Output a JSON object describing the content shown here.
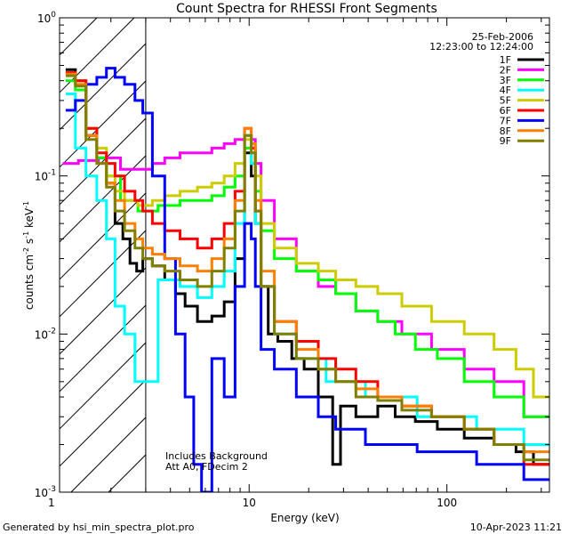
{
  "chart_data": {
    "type": "line",
    "title": "Count Spectra for RHESSI Front Segments",
    "xlabel": "Energy (keV)",
    "ylabel_parts": [
      "counts cm",
      "-2",
      " s",
      "-1",
      " keV",
      "-1"
    ],
    "x_scale": "log",
    "y_scale": "log",
    "xlim": [
      1.1,
      330
    ],
    "ylim": [
      0.001,
      1
    ],
    "x_ticks": [
      {
        "value": 1,
        "label": "1"
      },
      {
        "value": 10,
        "label": "10"
      },
      {
        "value": 100,
        "label": "100"
      }
    ],
    "y_ticks": [
      {
        "value": 0.001,
        "mantissa": "10",
        "exponent": "-3"
      },
      {
        "value": 0.01,
        "mantissa": "10",
        "exponent": "-2"
      },
      {
        "value": 0.1,
        "mantissa": "10",
        "exponent": "-1"
      },
      {
        "value": 1,
        "mantissa": "10",
        "exponent": "0"
      }
    ],
    "annotations": {
      "date": "25-Feb-2006",
      "time_range": "12:23:00 to 12:24:00",
      "notes": [
        "Includes Background",
        "Att A0, FDecim 2"
      ]
    },
    "shaded_region": {
      "x_end": 3,
      "style": "diagonal-hatch"
    },
    "legend_position": "top-right",
    "series": [
      {
        "name": "1F",
        "color": "#000000",
        "points": [
          [
            1.25,
            0.47
          ],
          [
            1.4,
            0.4
          ],
          [
            1.6,
            0.18
          ],
          [
            1.8,
            0.13
          ],
          [
            2.0,
            0.09
          ],
          [
            2.2,
            0.05
          ],
          [
            2.4,
            0.04
          ],
          [
            2.6,
            0.028
          ],
          [
            2.8,
            0.025
          ],
          [
            3.0,
            0.03
          ],
          [
            3.5,
            0.027
          ],
          [
            4.0,
            0.022
          ],
          [
            4.5,
            0.018
          ],
          [
            5.0,
            0.015
          ],
          [
            6.0,
            0.012
          ],
          [
            7.0,
            0.013
          ],
          [
            8.0,
            0.016
          ],
          [
            9.0,
            0.03
          ],
          [
            10.0,
            0.14
          ],
          [
            10.5,
            0.1
          ],
          [
            11.0,
            0.05
          ],
          [
            12.0,
            0.02
          ],
          [
            13.0,
            0.01
          ],
          [
            15.0,
            0.009
          ],
          [
            18.0,
            0.007
          ],
          [
            20.0,
            0.006
          ],
          [
            25.0,
            0.004
          ],
          [
            28.0,
            0.0015
          ],
          [
            30.0,
            0.0035
          ],
          [
            40.0,
            0.003
          ],
          [
            50.0,
            0.0035
          ],
          [
            60.0,
            0.003
          ],
          [
            80.0,
            0.0028
          ],
          [
            100.0,
            0.0025
          ],
          [
            150.0,
            0.0022
          ],
          [
            200.0,
            0.002
          ],
          [
            250.0,
            0.0018
          ],
          [
            300.0,
            0.0015
          ]
        ]
      },
      {
        "name": "2F",
        "color": "#ff00ff",
        "points": [
          [
            1.25,
            0.12
          ],
          [
            1.5,
            0.125
          ],
          [
            2.0,
            0.13
          ],
          [
            2.5,
            0.11
          ],
          [
            3.0,
            0.11
          ],
          [
            3.5,
            0.12
          ],
          [
            4.0,
            0.13
          ],
          [
            5.0,
            0.14
          ],
          [
            6.0,
            0.14
          ],
          [
            7.0,
            0.15
          ],
          [
            8.0,
            0.16
          ],
          [
            9.0,
            0.17
          ],
          [
            10.0,
            0.18
          ],
          [
            10.5,
            0.17
          ],
          [
            11.0,
            0.12
          ],
          [
            12.0,
            0.07
          ],
          [
            15.0,
            0.04
          ],
          [
            20.0,
            0.025
          ],
          [
            25.0,
            0.02
          ],
          [
            30.0,
            0.018
          ],
          [
            40.0,
            0.014
          ],
          [
            50.0,
            0.012
          ],
          [
            70.0,
            0.01
          ],
          [
            100.0,
            0.008
          ],
          [
            150.0,
            0.006
          ],
          [
            200.0,
            0.005
          ],
          [
            300.0,
            0.003
          ]
        ]
      },
      {
        "name": "3F",
        "color": "#00ff00",
        "points": [
          [
            1.25,
            0.4
          ],
          [
            1.4,
            0.35
          ],
          [
            1.6,
            0.2
          ],
          [
            1.8,
            0.13
          ],
          [
            2.0,
            0.1
          ],
          [
            2.5,
            0.07
          ],
          [
            3.0,
            0.06
          ],
          [
            4.0,
            0.065
          ],
          [
            5.0,
            0.07
          ],
          [
            6.0,
            0.07
          ],
          [
            7.0,
            0.075
          ],
          [
            8.0,
            0.085
          ],
          [
            9.0,
            0.1
          ],
          [
            10.0,
            0.15
          ],
          [
            10.5,
            0.12
          ],
          [
            11.0,
            0.08
          ],
          [
            12.0,
            0.045
          ],
          [
            15.0,
            0.03
          ],
          [
            20.0,
            0.025
          ],
          [
            25.0,
            0.022
          ],
          [
            30.0,
            0.018
          ],
          [
            40.0,
            0.014
          ],
          [
            50.0,
            0.012
          ],
          [
            60.0,
            0.01
          ],
          [
            80.0,
            0.008
          ],
          [
            100.0,
            0.007
          ],
          [
            150.0,
            0.005
          ],
          [
            200.0,
            0.004
          ],
          [
            300.0,
            0.003
          ]
        ]
      },
      {
        "name": "4F",
        "color": "#00ffff",
        "points": [
          [
            1.25,
            0.33
          ],
          [
            1.4,
            0.15
          ],
          [
            1.6,
            0.1
          ],
          [
            1.8,
            0.07
          ],
          [
            2.0,
            0.04
          ],
          [
            2.2,
            0.015
          ],
          [
            2.5,
            0.01
          ],
          [
            2.8,
            0.005
          ],
          [
            3.0,
            0.005
          ],
          [
            4.0,
            0.022
          ],
          [
            5.0,
            0.02
          ],
          [
            6.0,
            0.017
          ],
          [
            7.0,
            0.02
          ],
          [
            8.0,
            0.025
          ],
          [
            9.0,
            0.05
          ],
          [
            10.0,
            0.18
          ],
          [
            10.5,
            0.12
          ],
          [
            11.0,
            0.05
          ],
          [
            12.0,
            0.02
          ],
          [
            15.0,
            0.01
          ],
          [
            20.0,
            0.007
          ],
          [
            30.0,
            0.005
          ],
          [
            50.0,
            0.004
          ],
          [
            100.0,
            0.003
          ],
          [
            200.0,
            0.0025
          ],
          [
            300.0,
            0.002
          ]
        ]
      },
      {
        "name": "5F",
        "color": "#cccc00",
        "points": [
          [
            1.25,
            0.45
          ],
          [
            1.4,
            0.4
          ],
          [
            1.6,
            0.2
          ],
          [
            1.8,
            0.15
          ],
          [
            2.0,
            0.1
          ],
          [
            2.2,
            0.08
          ],
          [
            2.5,
            0.07
          ],
          [
            3.0,
            0.065
          ],
          [
            3.5,
            0.07
          ],
          [
            4.0,
            0.075
          ],
          [
            5.0,
            0.08
          ],
          [
            6.0,
            0.085
          ],
          [
            7.0,
            0.09
          ],
          [
            8.0,
            0.1
          ],
          [
            9.0,
            0.12
          ],
          [
            10.0,
            0.17
          ],
          [
            10.5,
            0.15
          ],
          [
            11.0,
            0.1
          ],
          [
            12.0,
            0.05
          ],
          [
            15.0,
            0.035
          ],
          [
            20.0,
            0.028
          ],
          [
            25.0,
            0.025
          ],
          [
            30.0,
            0.022
          ],
          [
            40.0,
            0.02
          ],
          [
            50.0,
            0.018
          ],
          [
            70.0,
            0.015
          ],
          [
            100.0,
            0.012
          ],
          [
            150.0,
            0.01
          ],
          [
            200.0,
            0.008
          ],
          [
            250.0,
            0.006
          ],
          [
            300.0,
            0.004
          ]
        ]
      },
      {
        "name": "6F",
        "color": "#ff0000",
        "points": [
          [
            1.25,
            0.45
          ],
          [
            1.4,
            0.4
          ],
          [
            1.6,
            0.2
          ],
          [
            1.8,
            0.14
          ],
          [
            2.0,
            0.12
          ],
          [
            2.2,
            0.1
          ],
          [
            2.5,
            0.08
          ],
          [
            2.8,
            0.07
          ],
          [
            3.0,
            0.06
          ],
          [
            3.5,
            0.05
          ],
          [
            4.0,
            0.045
          ],
          [
            5.0,
            0.04
          ],
          [
            6.0,
            0.035
          ],
          [
            7.0,
            0.04
          ],
          [
            8.0,
            0.05
          ],
          [
            9.0,
            0.08
          ],
          [
            10.0,
            0.2
          ],
          [
            10.5,
            0.15
          ],
          [
            11.0,
            0.06
          ],
          [
            12.0,
            0.02
          ],
          [
            15.0,
            0.012
          ],
          [
            20.0,
            0.009
          ],
          [
            25.0,
            0.007
          ],
          [
            30.0,
            0.006
          ],
          [
            40.0,
            0.005
          ],
          [
            50.0,
            0.004
          ],
          [
            70.0,
            0.0035
          ],
          [
            100.0,
            0.003
          ],
          [
            150.0,
            0.0025
          ],
          [
            200.0,
            0.002
          ],
          [
            300.0,
            0.0015
          ]
        ]
      },
      {
        "name": "7F",
        "color": "#0000ff",
        "points": [
          [
            1.25,
            0.26
          ],
          [
            1.4,
            0.3
          ],
          [
            1.6,
            0.38
          ],
          [
            1.8,
            0.42
          ],
          [
            2.0,
            0.48
          ],
          [
            2.2,
            0.42
          ],
          [
            2.5,
            0.38
          ],
          [
            2.8,
            0.3
          ],
          [
            3.0,
            0.25
          ],
          [
            3.5,
            0.1
          ],
          [
            4.0,
            0.03
          ],
          [
            4.5,
            0.01
          ],
          [
            5.0,
            0.004
          ],
          [
            5.5,
            0.0015
          ],
          [
            6.0,
            0.001
          ],
          [
            7.0,
            0.007
          ],
          [
            8.0,
            0.004
          ],
          [
            9.0,
            0.02
          ],
          [
            10.0,
            0.05
          ],
          [
            10.5,
            0.04
          ],
          [
            11.0,
            0.02
          ],
          [
            12.0,
            0.008
          ],
          [
            15.0,
            0.006
          ],
          [
            20.0,
            0.004
          ],
          [
            25.0,
            0.003
          ],
          [
            30.0,
            0.0025
          ],
          [
            50.0,
            0.002
          ],
          [
            100.0,
            0.0018
          ],
          [
            200.0,
            0.0015
          ],
          [
            300.0,
            0.0012
          ]
        ]
      },
      {
        "name": "8F",
        "color": "#ff8000",
        "points": [
          [
            1.25,
            0.44
          ],
          [
            1.4,
            0.38
          ],
          [
            1.6,
            0.18
          ],
          [
            1.8,
            0.12
          ],
          [
            2.0,
            0.09
          ],
          [
            2.2,
            0.07
          ],
          [
            2.5,
            0.05
          ],
          [
            2.8,
            0.04
          ],
          [
            3.0,
            0.035
          ],
          [
            3.5,
            0.032
          ],
          [
            4.0,
            0.03
          ],
          [
            5.0,
            0.027
          ],
          [
            6.0,
            0.025
          ],
          [
            7.0,
            0.03
          ],
          [
            8.0,
            0.04
          ],
          [
            9.0,
            0.07
          ],
          [
            10.0,
            0.2
          ],
          [
            10.5,
            0.16
          ],
          [
            11.0,
            0.07
          ],
          [
            12.0,
            0.025
          ],
          [
            15.0,
            0.012
          ],
          [
            20.0,
            0.008
          ],
          [
            25.0,
            0.006
          ],
          [
            30.0,
            0.005
          ],
          [
            40.0,
            0.0045
          ],
          [
            50.0,
            0.004
          ],
          [
            70.0,
            0.0035
          ],
          [
            100.0,
            0.003
          ],
          [
            150.0,
            0.0025
          ],
          [
            200.0,
            0.002
          ],
          [
            300.0,
            0.0018
          ]
        ]
      },
      {
        "name": "9F",
        "color": "#808000",
        "points": [
          [
            1.25,
            0.43
          ],
          [
            1.4,
            0.37
          ],
          [
            1.6,
            0.17
          ],
          [
            1.8,
            0.12
          ],
          [
            2.0,
            0.085
          ],
          [
            2.2,
            0.06
          ],
          [
            2.5,
            0.045
          ],
          [
            2.8,
            0.035
          ],
          [
            3.0,
            0.03
          ],
          [
            3.5,
            0.027
          ],
          [
            4.0,
            0.025
          ],
          [
            5.0,
            0.022
          ],
          [
            6.0,
            0.02
          ],
          [
            7.0,
            0.025
          ],
          [
            8.0,
            0.035
          ],
          [
            9.0,
            0.06
          ],
          [
            10.0,
            0.18
          ],
          [
            10.5,
            0.14
          ],
          [
            11.0,
            0.06
          ],
          [
            12.0,
            0.02
          ],
          [
            15.0,
            0.01
          ],
          [
            20.0,
            0.007
          ],
          [
            25.0,
            0.006
          ],
          [
            30.0,
            0.005
          ],
          [
            40.0,
            0.004
          ],
          [
            50.0,
            0.0038
          ],
          [
            70.0,
            0.0033
          ],
          [
            100.0,
            0.003
          ],
          [
            150.0,
            0.0025
          ],
          [
            200.0,
            0.002
          ],
          [
            300.0,
            0.0016
          ]
        ]
      }
    ]
  },
  "footer": {
    "left": "Generated by hsi_min_spectra_plot.pro",
    "right": "10-Apr-2023 11:21"
  }
}
